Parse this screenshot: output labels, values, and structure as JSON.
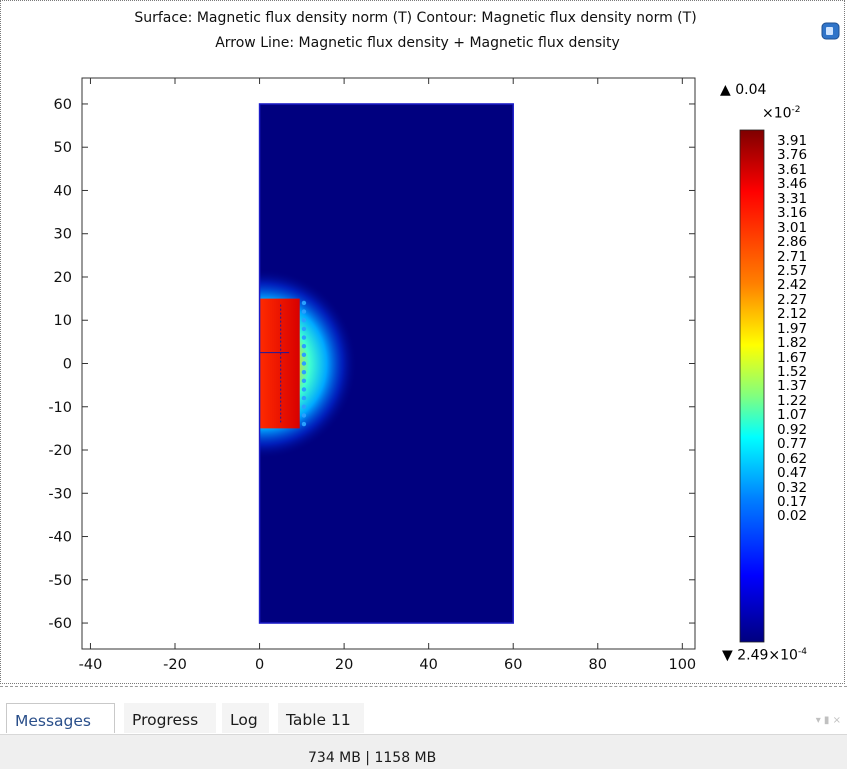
{
  "title": {
    "line1": "Surface: Magnetic flux density norm (T)  Contour: Magnetic flux density norm (T)",
    "line2": "Arrow Line: Magnetic flux density + Magnetic flux density"
  },
  "plot": {
    "x_ticks": [
      "-40",
      "-20",
      "0",
      "20",
      "40",
      "60",
      "80",
      "100"
    ],
    "y_ticks": [
      "60",
      "50",
      "40",
      "30",
      "20",
      "10",
      "0",
      "-10",
      "-20",
      "-30",
      "-40",
      "-50",
      "-60"
    ],
    "x_range": [
      -42,
      103
    ],
    "y_range": [
      -66,
      66
    ],
    "domain_rect": {
      "x": [
        0,
        60
      ],
      "y": [
        -60,
        60
      ]
    },
    "magnet_region": {
      "x": [
        0,
        9.5
      ],
      "y": [
        -15,
        15
      ]
    },
    "colors": {
      "background": "#00007f",
      "field_high": "#e00d00",
      "field_mid": "#00d4ff",
      "border": "#1c1cc8"
    }
  },
  "colorbar": {
    "max_marker": "▲",
    "max_label": "0.04",
    "exponent_base": "×10",
    "exponent_power": "-2",
    "ticks": [
      "3.91",
      "3.76",
      "3.61",
      "3.46",
      "3.31",
      "3.16",
      "3.01",
      "2.86",
      "2.71",
      "2.57",
      "2.42",
      "2.27",
      "2.12",
      "1.97",
      "1.82",
      "1.67",
      "1.52",
      "1.37",
      "1.22",
      "1.07",
      "0.92",
      "0.77",
      "0.62",
      "0.47",
      "0.32",
      "0.17",
      "0.02"
    ],
    "min_marker": "▼",
    "min_label_base": "2.49×10",
    "min_label_power": "-4",
    "gradient_stops": [
      "#7f0000",
      "#ff0000",
      "#ff8000",
      "#ffff00",
      "#80ff80",
      "#00ffff",
      "#0080ff",
      "#0000ff",
      "#00007f"
    ]
  },
  "panel": {
    "tabs": [
      {
        "label": "Messages",
        "active": true
      },
      {
        "label": "Progress",
        "active": false
      },
      {
        "label": "Log",
        "active": false
      },
      {
        "label": "Table 11",
        "active": false
      }
    ],
    "controls": "▾ ▮ ×"
  },
  "status": {
    "memory": "734 MB | 1158 MB"
  }
}
